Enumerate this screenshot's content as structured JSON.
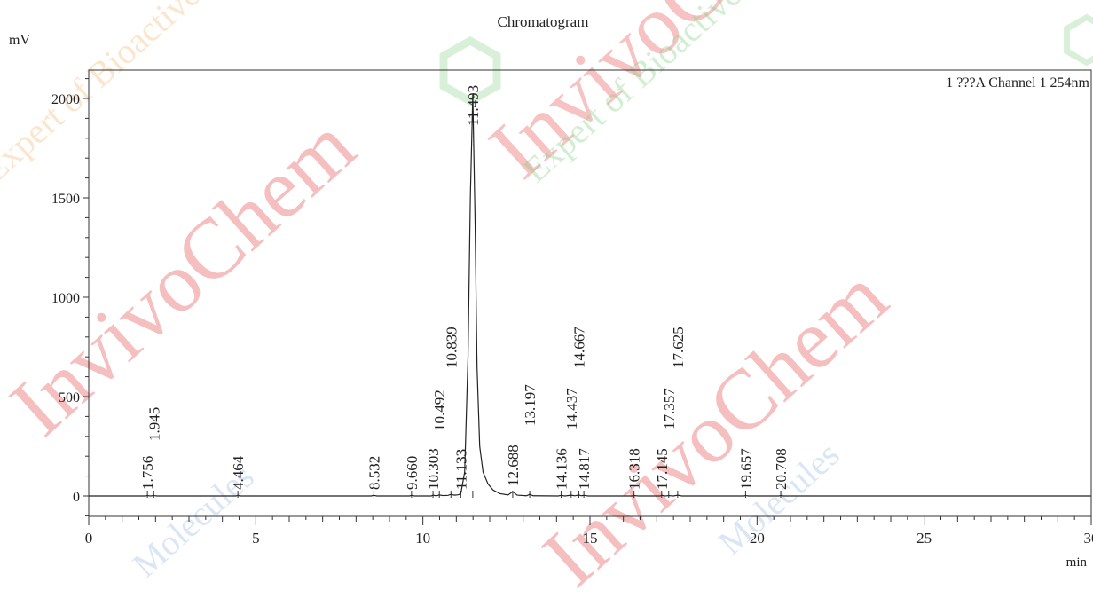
{
  "chart_data": {
    "type": "line",
    "title": "Chromatogram",
    "channel_label": "1 ???A Channel 1 254nm",
    "xlabel": "min",
    "ylabel": "mV",
    "xlim": [
      0,
      30
    ],
    "ylim": [
      -100,
      2100
    ],
    "x_ticks": [
      0,
      5,
      10,
      15,
      20,
      25,
      30
    ],
    "y_ticks": [
      0,
      500,
      1000,
      1500,
      2000
    ],
    "grid": false,
    "series": [
      {
        "points": [
          [
            0,
            0
          ],
          [
            1.7,
            0
          ],
          [
            1.756,
            2
          ],
          [
            1.85,
            0
          ],
          [
            1.945,
            2
          ],
          [
            2.05,
            0
          ],
          [
            4.4,
            0
          ],
          [
            4.464,
            2
          ],
          [
            4.55,
            0
          ],
          [
            8.45,
            0
          ],
          [
            8.532,
            3
          ],
          [
            8.62,
            0
          ],
          [
            9.6,
            0
          ],
          [
            9.66,
            3
          ],
          [
            9.75,
            0
          ],
          [
            10.25,
            0
          ],
          [
            10.303,
            4
          ],
          [
            10.4,
            1
          ],
          [
            10.492,
            5
          ],
          [
            10.6,
            2
          ],
          [
            10.75,
            3
          ],
          [
            10.839,
            8
          ],
          [
            10.95,
            4
          ],
          [
            11.05,
            6
          ],
          [
            11.133,
            10
          ],
          [
            11.25,
            120
          ],
          [
            11.35,
            700
          ],
          [
            11.42,
            1500
          ],
          [
            11.493,
            2020
          ],
          [
            11.56,
            1400
          ],
          [
            11.62,
            650
          ],
          [
            11.7,
            250
          ],
          [
            11.8,
            120
          ],
          [
            11.95,
            60
          ],
          [
            12.1,
            30
          ],
          [
            12.3,
            12
          ],
          [
            12.55,
            5
          ],
          [
            12.688,
            22
          ],
          [
            12.82,
            4
          ],
          [
            13.1,
            1
          ],
          [
            13.197,
            8
          ],
          [
            13.3,
            1
          ],
          [
            14.05,
            0
          ],
          [
            14.136,
            3
          ],
          [
            14.25,
            0
          ],
          [
            14.437,
            4
          ],
          [
            14.55,
            1
          ],
          [
            14.667,
            5
          ],
          [
            14.74,
            1
          ],
          [
            14.817,
            3
          ],
          [
            14.95,
            0
          ],
          [
            16.25,
            0
          ],
          [
            16.318,
            2
          ],
          [
            16.45,
            0
          ],
          [
            17.1,
            0
          ],
          [
            17.145,
            3
          ],
          [
            17.25,
            0
          ],
          [
            17.357,
            2
          ],
          [
            17.5,
            0
          ],
          [
            17.625,
            4
          ],
          [
            17.75,
            0
          ],
          [
            19.6,
            0
          ],
          [
            19.657,
            2
          ],
          [
            19.75,
            0
          ],
          [
            20.65,
            0
          ],
          [
            20.708,
            2
          ],
          [
            20.8,
            0
          ],
          [
            30,
            0
          ]
        ]
      }
    ],
    "peaks": [
      {
        "time": "1.756",
        "x": 1.756
      },
      {
        "time": "1.945",
        "x": 1.945
      },
      {
        "time": "4.464",
        "x": 4.464
      },
      {
        "time": "8.532",
        "x": 8.532
      },
      {
        "time": "9.660",
        "x": 9.66
      },
      {
        "time": "10.303",
        "x": 10.303
      },
      {
        "time": "10.492",
        "x": 10.492
      },
      {
        "time": "10.839",
        "x": 10.839
      },
      {
        "time": "11.133",
        "x": 11.133
      },
      {
        "time": "11.493",
        "x": 11.493
      },
      {
        "time": "12.688",
        "x": 12.688
      },
      {
        "time": "13.197",
        "x": 13.197
      },
      {
        "time": "14.136",
        "x": 14.136
      },
      {
        "time": "14.437",
        "x": 14.437
      },
      {
        "time": "14.667",
        "x": 14.667
      },
      {
        "time": "14.817",
        "x": 14.817
      },
      {
        "time": "16.318",
        "x": 16.318
      },
      {
        "time": "17.145",
        "x": 17.145
      },
      {
        "time": "17.357",
        "x": 17.357
      },
      {
        "time": "17.625",
        "x": 17.625
      },
      {
        "time": "19.657",
        "x": 19.657
      },
      {
        "time": "20.708",
        "x": 20.708
      }
    ]
  },
  "watermark": {
    "brand": "InvivoChem",
    "tagline_1": "Expert of Bioactive",
    "tagline_2": "Molecules",
    "colors": {
      "red": "#e23a3a",
      "green": "#7fd07f",
      "orange": "#f0b060",
      "blue": "#9ab8e0"
    }
  }
}
